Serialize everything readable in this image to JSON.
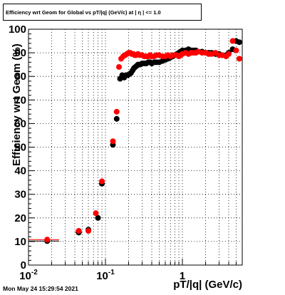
{
  "chart_data": {
    "type": "scatter",
    "title": "Efficiency wrt Geom for Global vs pT/|q| (GeV/c) at | η | <= 1.0",
    "xlabel": "pT/|q| (GeV/c)",
    "ylabel": "Efficiency wrt Geom (%)",
    "xscale": "log",
    "xlim": [
      0.01,
      6.0
    ],
    "ylim": [
      0,
      100
    ],
    "grid": true,
    "x_tick_labels": [
      "10^-2",
      "10^-1",
      "1"
    ],
    "y_ticks": [
      0,
      10,
      20,
      30,
      40,
      50,
      60,
      70,
      80,
      90,
      100
    ],
    "colors": {
      "series_black": "#000000",
      "series_red": "#ff0000",
      "axes": "#000000",
      "grid": "#000000"
    },
    "series": [
      {
        "color": "#000000",
        "x": [
          0.0175,
          0.045,
          0.06,
          0.08,
          0.09,
          0.125,
          0.14,
          0.155,
          0.165,
          0.175,
          0.185,
          0.195,
          0.205,
          0.215,
          0.225,
          0.235,
          0.245,
          0.255,
          0.265,
          0.28,
          0.3,
          0.32,
          0.34,
          0.36,
          0.38,
          0.4,
          0.43,
          0.46,
          0.5,
          0.55,
          0.6,
          0.65,
          0.7,
          0.75,
          0.8,
          0.85,
          0.9,
          0.95,
          1.0,
          1.1,
          1.2,
          1.3,
          1.4,
          1.5,
          1.6,
          1.8,
          2.0,
          2.2,
          2.4,
          2.7,
          3.0,
          3.3,
          3.7,
          4.0,
          4.5,
          5.0,
          5.5
        ],
        "y": [
          10.2,
          13.8,
          15.0,
          20.0,
          34.5,
          51.0,
          62.0,
          79.0,
          80.5,
          79.5,
          80.5,
          80.5,
          81.0,
          81.5,
          82.5,
          83.5,
          84.0,
          84.5,
          85.0,
          85.0,
          85.5,
          85.5,
          85.5,
          86.0,
          86.0,
          85.5,
          86.0,
          86.0,
          86.0,
          86.5,
          87.0,
          87.5,
          88.0,
          88.5,
          89.0,
          89.5,
          90.0,
          90.5,
          91.0,
          91.0,
          91.5,
          91.0,
          91.0,
          91.0,
          90.5,
          90.5,
          90.0,
          90.0,
          90.0,
          89.5,
          89.5,
          89.0,
          89.0,
          90.0,
          91.5,
          95.0,
          94.5
        ],
        "xerr": [
          0.0075,
          0.0045,
          0.005,
          0.0,
          0.008,
          0.006,
          0.006,
          0.005,
          0.005,
          0.005,
          0.005,
          0.005,
          0.005,
          0.005,
          0.005,
          0.005,
          0.005,
          0.005,
          0.005,
          0.01,
          0.01,
          0.01,
          0.01,
          0.01,
          0.01,
          0.01,
          0.015,
          0.015,
          0.02,
          0.025,
          0.025,
          0.025,
          0.025,
          0.025,
          0.025,
          0.025,
          0.025,
          0.025,
          0.025,
          0.05,
          0.05,
          0.05,
          0.05,
          0.05,
          0.05,
          0.1,
          0.1,
          0.1,
          0.1,
          0.15,
          0.15,
          0.15,
          0.2,
          0.2,
          0.25,
          0.25,
          0.25
        ]
      },
      {
        "color": "#ff0000",
        "x": [
          0.0175,
          0.045,
          0.06,
          0.075,
          0.09,
          0.125,
          0.14,
          0.15,
          0.16,
          0.17,
          0.18,
          0.19,
          0.2,
          0.21,
          0.22,
          0.23,
          0.24,
          0.25,
          0.265,
          0.28,
          0.3,
          0.32,
          0.34,
          0.36,
          0.38,
          0.4,
          0.43,
          0.46,
          0.5,
          0.55,
          0.6,
          0.65,
          0.7,
          0.75,
          0.8,
          0.85,
          0.9,
          0.95,
          1.0,
          1.1,
          1.2,
          1.3,
          1.4,
          1.5,
          1.6,
          1.8,
          2.0,
          2.2,
          2.4,
          2.7,
          3.0,
          3.3,
          3.7,
          4.0,
          4.5,
          5.0,
          5.5
        ],
        "y": [
          10.8,
          14.5,
          14.5,
          22.0,
          35.5,
          52.5,
          65.0,
          84.0,
          87.5,
          88.5,
          89.0,
          89.5,
          90.0,
          90.0,
          89.5,
          89.5,
          89.0,
          89.0,
          89.5,
          89.0,
          89.0,
          88.5,
          88.5,
          88.5,
          89.0,
          88.5,
          88.5,
          89.0,
          89.0,
          88.5,
          88.5,
          89.0,
          88.5,
          89.0,
          89.0,
          89.0,
          88.5,
          89.0,
          89.5,
          90.0,
          89.5,
          90.0,
          90.0,
          90.0,
          90.5,
          90.0,
          90.0,
          89.5,
          89.5,
          90.0,
          89.0,
          89.0,
          88.5,
          89.5,
          95.0,
          91.0,
          87.5
        ],
        "xerr": [
          0.0075,
          0.0045,
          0.005,
          0.0,
          0.008,
          0.006,
          0.006,
          0.005,
          0.005,
          0.005,
          0.005,
          0.005,
          0.005,
          0.005,
          0.005,
          0.005,
          0.005,
          0.005,
          0.005,
          0.01,
          0.01,
          0.01,
          0.01,
          0.01,
          0.01,
          0.01,
          0.015,
          0.015,
          0.02,
          0.025,
          0.025,
          0.025,
          0.025,
          0.025,
          0.025,
          0.025,
          0.025,
          0.025,
          0.025,
          0.05,
          0.05,
          0.05,
          0.05,
          0.05,
          0.05,
          0.1,
          0.1,
          0.1,
          0.1,
          0.15,
          0.15,
          0.15,
          0.2,
          0.2,
          0.25,
          0.25,
          0.25
        ]
      }
    ]
  },
  "footer": {
    "timestamp": "Mon May 24 15:29:54 2021"
  }
}
